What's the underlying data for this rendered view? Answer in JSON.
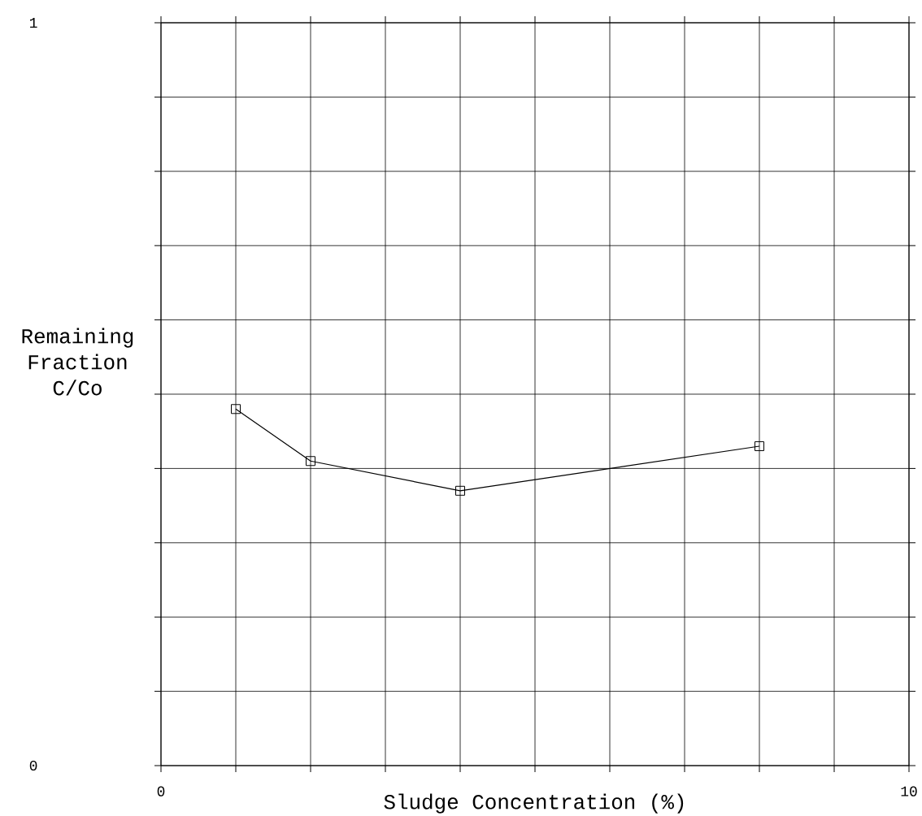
{
  "chart_data": {
    "type": "line",
    "xlabel": "Sludge Concentration (%)",
    "ylabel": "Remaining Fraction C/Co",
    "x": [
      1,
      2,
      4,
      8
    ],
    "series": [
      {
        "color": "#000000",
        "values": [
          0.48,
          0.41,
          0.37,
          0.43
        ]
      }
    ],
    "xlim": [
      0,
      10
    ],
    "ylim": [
      0,
      1
    ],
    "xticks": [
      0,
      {
        "value": 1,
        "label": null
      },
      {
        "value": 2,
        "label": null
      },
      {
        "value": 3,
        "label": null
      },
      {
        "value": 4,
        "label": null
      },
      {
        "value": 5,
        "label": null
      },
      {
        "value": 6,
        "label": null
      },
      {
        "value": 7,
        "label": null
      },
      {
        "value": 8,
        "label": null
      },
      {
        "value": 9,
        "label": null
      },
      10
    ],
    "yticks": [
      0,
      {
        "value": 0.1,
        "label": null
      },
      {
        "value": 0.2,
        "label": null
      },
      {
        "value": 0.3,
        "label": null
      },
      {
        "value": 0.4,
        "label": null
      },
      {
        "value": 0.5,
        "label": null
      },
      {
        "value": 0.6,
        "label": null
      },
      {
        "value": 0.7,
        "label": null
      },
      {
        "value": 0.8,
        "label": null
      },
      {
        "value": 0.9,
        "label": null
      },
      1
    ],
    "grid": true,
    "marker": "square",
    "line_style": "solid"
  }
}
